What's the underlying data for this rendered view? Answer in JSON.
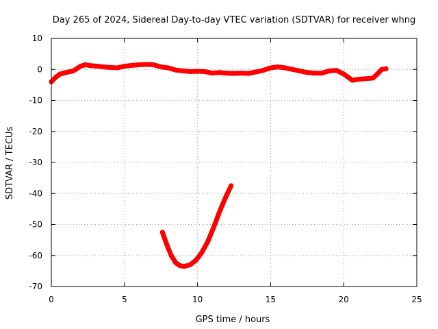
{
  "chart_data": {
    "type": "line",
    "title": "Day 265 of 2024, Sidereal Day-to-day VTEC variation (SDTVAR) for receiver whng",
    "xlabel": "GPS time / hours",
    "ylabel": "SDTVAR / TECUs",
    "xlim": [
      0,
      25
    ],
    "ylim": [
      -70,
      10
    ],
    "xticks": [
      0,
      5,
      10,
      15,
      20,
      25
    ],
    "yticks": [
      10,
      0,
      -10,
      -20,
      -30,
      -40,
      -50,
      -60,
      -70
    ],
    "grid": true,
    "colors": {
      "series": "#ff0000"
    },
    "series": [
      {
        "name": "SDTVAR main",
        "color": "#ff0000",
        "x": [
          0,
          0.3,
          0.6,
          1.0,
          1.5,
          2.0,
          2.3,
          2.7,
          3.2,
          3.8,
          4.5,
          5.0,
          5.5,
          6.0,
          6.5,
          7.0,
          7.5,
          8.0,
          8.5,
          9.0,
          9.5,
          10.0,
          10.5,
          11.0,
          11.5,
          12.0,
          12.5,
          13.0,
          13.5,
          14.0,
          14.5,
          15.0,
          15.5,
          16.0,
          16.5,
          17.0,
          17.5,
          18.0,
          18.5,
          19.0,
          19.5,
          20.0,
          20.3,
          20.6,
          21.0,
          21.5,
          22.0,
          22.3,
          22.6,
          22.9
        ],
        "y": [
          -4,
          -2.5,
          -1.5,
          -1,
          -0.5,
          1,
          1.5,
          1.2,
          1,
          0.7,
          0.5,
          1,
          1.3,
          1.5,
          1.6,
          1.5,
          0.8,
          0.5,
          -0.2,
          -0.5,
          -0.7,
          -0.6,
          -0.7,
          -1.2,
          -1,
          -1.2,
          -1.3,
          -1.2,
          -1.3,
          -0.8,
          -0.3,
          0.5,
          0.8,
          0.5,
          0,
          -0.5,
          -1,
          -1.2,
          -1.2,
          -0.5,
          -0.3,
          -1.5,
          -2.5,
          -3.5,
          -3.2,
          -3,
          -2.8,
          -1.5,
          0,
          0.2
        ]
      },
      {
        "name": "SDTVAR segment",
        "color": "#ff0000",
        "x": [
          7.6,
          7.9,
          8.2,
          8.5,
          8.8,
          9.1,
          9.5,
          9.9,
          10.3,
          10.7,
          11.1,
          11.5,
          11.9,
          12.3
        ],
        "y": [
          -52.5,
          -56.5,
          -60,
          -62.3,
          -63.3,
          -63.5,
          -63,
          -61.5,
          -59,
          -55.5,
          -51,
          -46,
          -41.5,
          -37.5
        ]
      }
    ]
  }
}
